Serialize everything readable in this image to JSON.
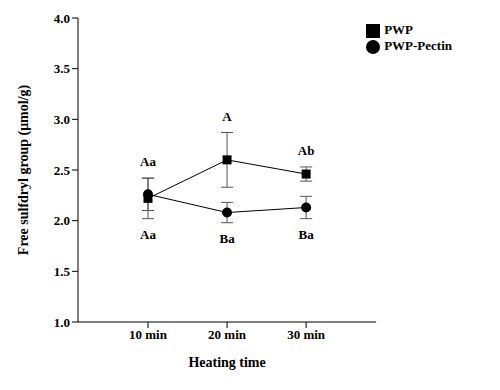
{
  "chart_data": {
    "type": "line",
    "x_label": "Heating time",
    "y_label": "Free sulfdryl group (μmol/g)",
    "categories": [
      "10 min",
      "20 min",
      "30 min"
    ],
    "series": [
      {
        "name": "PWP",
        "color": "#000000",
        "marker": "square",
        "values": [
          2.22,
          2.6,
          2.46
        ],
        "errors": [
          0.2,
          0.27,
          0.07
        ],
        "annotations": [
          "Aa",
          "A",
          "Ab"
        ]
      },
      {
        "name": "PWP-Pectin",
        "color": "#000000",
        "marker": "circle",
        "values": [
          2.26,
          2.08,
          2.13
        ],
        "errors": [
          0.16,
          0.1,
          0.11
        ],
        "annotations": [
          "Aa",
          "Ba",
          "Ba"
        ]
      }
    ],
    "ylim": [
      1.0,
      4.0
    ],
    "yticks": [
      {
        "value": 1.0,
        "label": "1.0"
      },
      {
        "value": 1.5,
        "label": "1.5"
      },
      {
        "value": 2.0,
        "label": "2.0"
      },
      {
        "value": 2.5,
        "label": "2.5"
      },
      {
        "value": 3.0,
        "label": "3.0"
      },
      {
        "value": 3.5,
        "label": "3.5"
      },
      {
        "value": 4.0,
        "label": "4.0"
      }
    ],
    "legend": "upper right",
    "grid": false
  }
}
